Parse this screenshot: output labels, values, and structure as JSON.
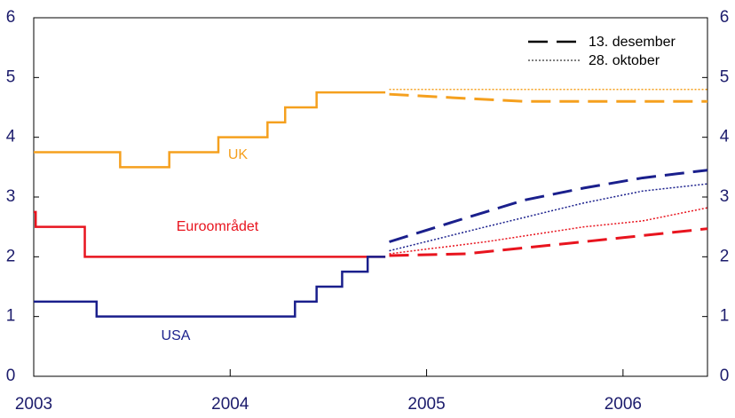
{
  "chart_data": {
    "type": "line",
    "xlim": [
      2003,
      2006.43
    ],
    "xticks": [
      2003,
      2004,
      2005,
      2006
    ],
    "ylim": [
      0,
      6
    ],
    "yticks": [
      0,
      1,
      2,
      3,
      4,
      5,
      6
    ],
    "legend_position": "upper right",
    "legend": [
      {
        "label": "13. desember",
        "style": "dashed"
      },
      {
        "label": "28. oktober",
        "style": "dotted"
      }
    ],
    "annotations": [
      {
        "text": "UK",
        "color": "#f5a01e"
      },
      {
        "text": "Euroområdet",
        "color": "#e8141e"
      },
      {
        "text": "USA",
        "color": "#1a1f8c"
      }
    ],
    "series": [
      {
        "color": "#f5a01e",
        "style": "solid",
        "x": [
          2003,
          2003.44,
          2003.44,
          2003.69,
          2003.69,
          2003.94,
          2003.94,
          2004.19,
          2004.19,
          2004.28,
          2004.28,
          2004.44,
          2004.44,
          2004.79
        ],
        "values": [
          3.75,
          3.75,
          3.5,
          3.5,
          3.75,
          3.75,
          4,
          4,
          4.25,
          4.25,
          4.5,
          4.5,
          4.75,
          4.75
        ]
      },
      {
        "color": "#e8141e",
        "style": "solid",
        "x": [
          2003,
          2003.01,
          2003.01,
          2003.26,
          2003.26,
          2004.79
        ],
        "values": [
          2.75,
          2.75,
          2.5,
          2.5,
          2,
          2
        ]
      },
      {
        "color": "#1a1f8c",
        "style": "solid",
        "x": [
          2003,
          2003.32,
          2003.32,
          2004.33,
          2004.33,
          2004.44,
          2004.44,
          2004.57,
          2004.57,
          2004.7,
          2004.7,
          2004.79
        ],
        "values": [
          1.25,
          1.25,
          1,
          1,
          1.25,
          1.25,
          1.5,
          1.5,
          1.75,
          1.75,
          2,
          2
        ]
      },
      {
        "color": "#f5a01e",
        "style": "dashed",
        "x": [
          2004.81,
          2005.2,
          2005.5,
          2006.43
        ],
        "values": [
          4.72,
          4.65,
          4.6,
          4.6
        ]
      },
      {
        "color": "#e8141e",
        "style": "dashed",
        "x": [
          2004.81,
          2005.2,
          2005.5,
          2006,
          2006.43
        ],
        "values": [
          2.02,
          2.05,
          2.15,
          2.32,
          2.47
        ]
      },
      {
        "color": "#1a1f8c",
        "style": "dashed",
        "x": [
          2004.81,
          2005.2,
          2005.5,
          2005.8,
          2006.1,
          2006.43
        ],
        "values": [
          2.25,
          2.65,
          2.95,
          3.15,
          3.32,
          3.45
        ]
      },
      {
        "color": "#f5a01e",
        "style": "dotted",
        "x": [
          2004.81,
          2006.43
        ],
        "values": [
          4.8,
          4.8
        ]
      },
      {
        "color": "#e8141e",
        "style": "dotted",
        "x": [
          2004.81,
          2005.3,
          2005.8,
          2006.1,
          2006.43
        ],
        "values": [
          2.05,
          2.25,
          2.5,
          2.6,
          2.82
        ]
      },
      {
        "color": "#1a1f8c",
        "style": "dotted",
        "x": [
          2004.81,
          2005.3,
          2005.8,
          2006.1,
          2006.43
        ],
        "values": [
          2.1,
          2.5,
          2.9,
          3.1,
          3.22
        ]
      }
    ]
  }
}
